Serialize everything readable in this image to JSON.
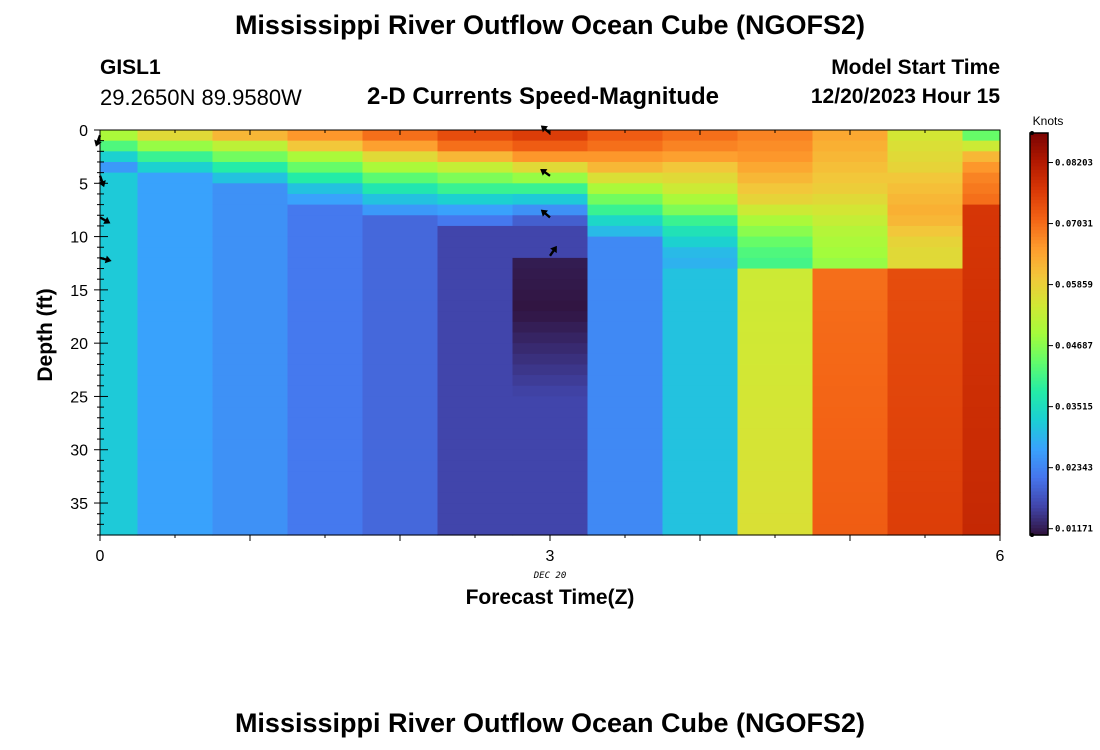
{
  "header": {
    "title": "Mississippi River Outflow Ocean Cube (NGOFS2)",
    "station_id": "GISL1",
    "station_coords": "29.2650N  89.9580W",
    "subtitle": "2-D Currents Speed-Magnitude",
    "model_start_label": "Model Start Time",
    "model_start_value": "12/20/2023 Hour 15"
  },
  "footer": {
    "title": "Mississippi River Outflow Ocean Cube (NGOFS2)"
  },
  "chart_data": {
    "type": "heatmap",
    "xlabel": "Forecast Time(Z)",
    "ylabel": "Depth (ft)",
    "date_label": "DEC 20",
    "xlim": [
      0,
      6
    ],
    "ylim": [
      38,
      0
    ],
    "x_ticks": [
      0,
      3,
      6
    ],
    "y_ticks": [
      0,
      5,
      10,
      15,
      20,
      25,
      30,
      35
    ],
    "colorbar": {
      "unit": "Knots",
      "min": 0.0105,
      "max": 0.0877,
      "tick_labels": [
        "0.08203",
        "0.07031",
        "0.05859",
        "0.04687",
        "0.03515",
        "0.02343",
        "0.01171"
      ],
      "tick_values": [
        0.08203,
        0.07031,
        0.05859,
        0.04687,
        0.03515,
        0.02343,
        0.01171
      ],
      "colors": [
        "#30123b",
        "#4145ab",
        "#4675ed",
        "#39a2fc",
        "#1bcfd4",
        "#24eca6",
        "#61fc6c",
        "#a4fc3b",
        "#d1e834",
        "#f3c63a",
        "#fe9b2d",
        "#f36315",
        "#d93806",
        "#b11901",
        "#7a0402"
      ]
    },
    "columns": [
      {
        "x0": 0,
        "x1": 0.25,
        "surface": [
          0.05,
          0.042,
          0.033,
          0.026
        ],
        "body": 0.032
      },
      {
        "x0": 0.25,
        "x1": 0.75,
        "surface": [
          0.057,
          0.048,
          0.04,
          0.033,
          0.027
        ],
        "body": 0.027
      },
      {
        "x0": 0.75,
        "x1": 1.25,
        "surface": [
          0.062,
          0.052,
          0.045,
          0.038,
          0.031
        ],
        "body": 0.025
      },
      {
        "x0": 1.25,
        "x1": 1.75,
        "surface": [
          0.066,
          0.06,
          0.05,
          0.044,
          0.038,
          0.031,
          0.027
        ],
        "body": 0.022
      },
      {
        "x0": 1.75,
        "x1": 2.25,
        "surface": [
          0.07,
          0.065,
          0.057,
          0.05,
          0.043,
          0.037,
          0.031,
          0.026
        ],
        "body": 0.02
      },
      {
        "x0": 2.25,
        "x1": 2.75,
        "surface": [
          0.074,
          0.07,
          0.062,
          0.053,
          0.046,
          0.04,
          0.033,
          0.027,
          0.022
        ],
        "body": 0.016
      },
      {
        "x0": 2.75,
        "x1": 3.25,
        "surface": [
          0.076,
          0.072,
          0.066,
          0.057,
          0.048,
          0.04,
          0.032,
          0.025,
          0.019,
          0.016
        ],
        "body": 0.016,
        "core": {
          "d0": 12.5,
          "d1": 25,
          "min": 0.0108
        }
      },
      {
        "x0": 3.25,
        "x1": 3.75,
        "surface": [
          0.072,
          0.07,
          0.066,
          0.062,
          0.056,
          0.05,
          0.045,
          0.04,
          0.034,
          0.03
        ],
        "body": 0.024
      },
      {
        "x0": 3.75,
        "x1": 4.25,
        "surface": [
          0.07,
          0.068,
          0.065,
          0.06,
          0.057,
          0.054,
          0.05,
          0.046,
          0.04,
          0.036,
          0.033,
          0.03,
          0.029
        ],
        "body": 0.031
      },
      {
        "x0": 4.25,
        "x1": 4.75,
        "surface": [
          0.068,
          0.067,
          0.066,
          0.064,
          0.062,
          0.06,
          0.058,
          0.054,
          0.05,
          0.047,
          0.044,
          0.042,
          0.041
        ],
        "body": 0.054
      },
      {
        "x0": 4.75,
        "x1": 5.25,
        "surface": [
          0.064,
          0.063,
          0.062,
          0.061,
          0.06,
          0.059,
          0.057,
          0.055,
          0.053,
          0.051,
          0.05,
          0.049,
          0.048
        ],
        "body": 0.07
      },
      {
        "x0": 5.25,
        "x1": 5.75,
        "surface": [
          0.055,
          0.056,
          0.057,
          0.058,
          0.06,
          0.061,
          0.062,
          0.063,
          0.062,
          0.06,
          0.058,
          0.057,
          0.057
        ],
        "body": 0.074
      },
      {
        "x0": 5.75,
        "x1": 6.0,
        "surface": [
          0.044,
          0.054,
          0.062,
          0.066,
          0.068,
          0.069,
          0.07
        ],
        "body": 0.077
      }
    ],
    "vectors": [
      {
        "x": 0.0,
        "depth": 0.5,
        "angle": 110
      },
      {
        "x": 0.0,
        "depth": 4.3,
        "angle": 70
      },
      {
        "x": 0.0,
        "depth": 8.2,
        "angle": 30
      },
      {
        "x": 0.0,
        "depth": 12.0,
        "angle": 15
      },
      {
        "x": 3.0,
        "depth": 0.3,
        "angle": 220
      },
      {
        "x": 3.0,
        "depth": 4.3,
        "angle": 215
      },
      {
        "x": 3.0,
        "depth": 8.2,
        "angle": 220
      },
      {
        "x": 3.0,
        "depth": 11.8,
        "angle": 305
      }
    ]
  }
}
